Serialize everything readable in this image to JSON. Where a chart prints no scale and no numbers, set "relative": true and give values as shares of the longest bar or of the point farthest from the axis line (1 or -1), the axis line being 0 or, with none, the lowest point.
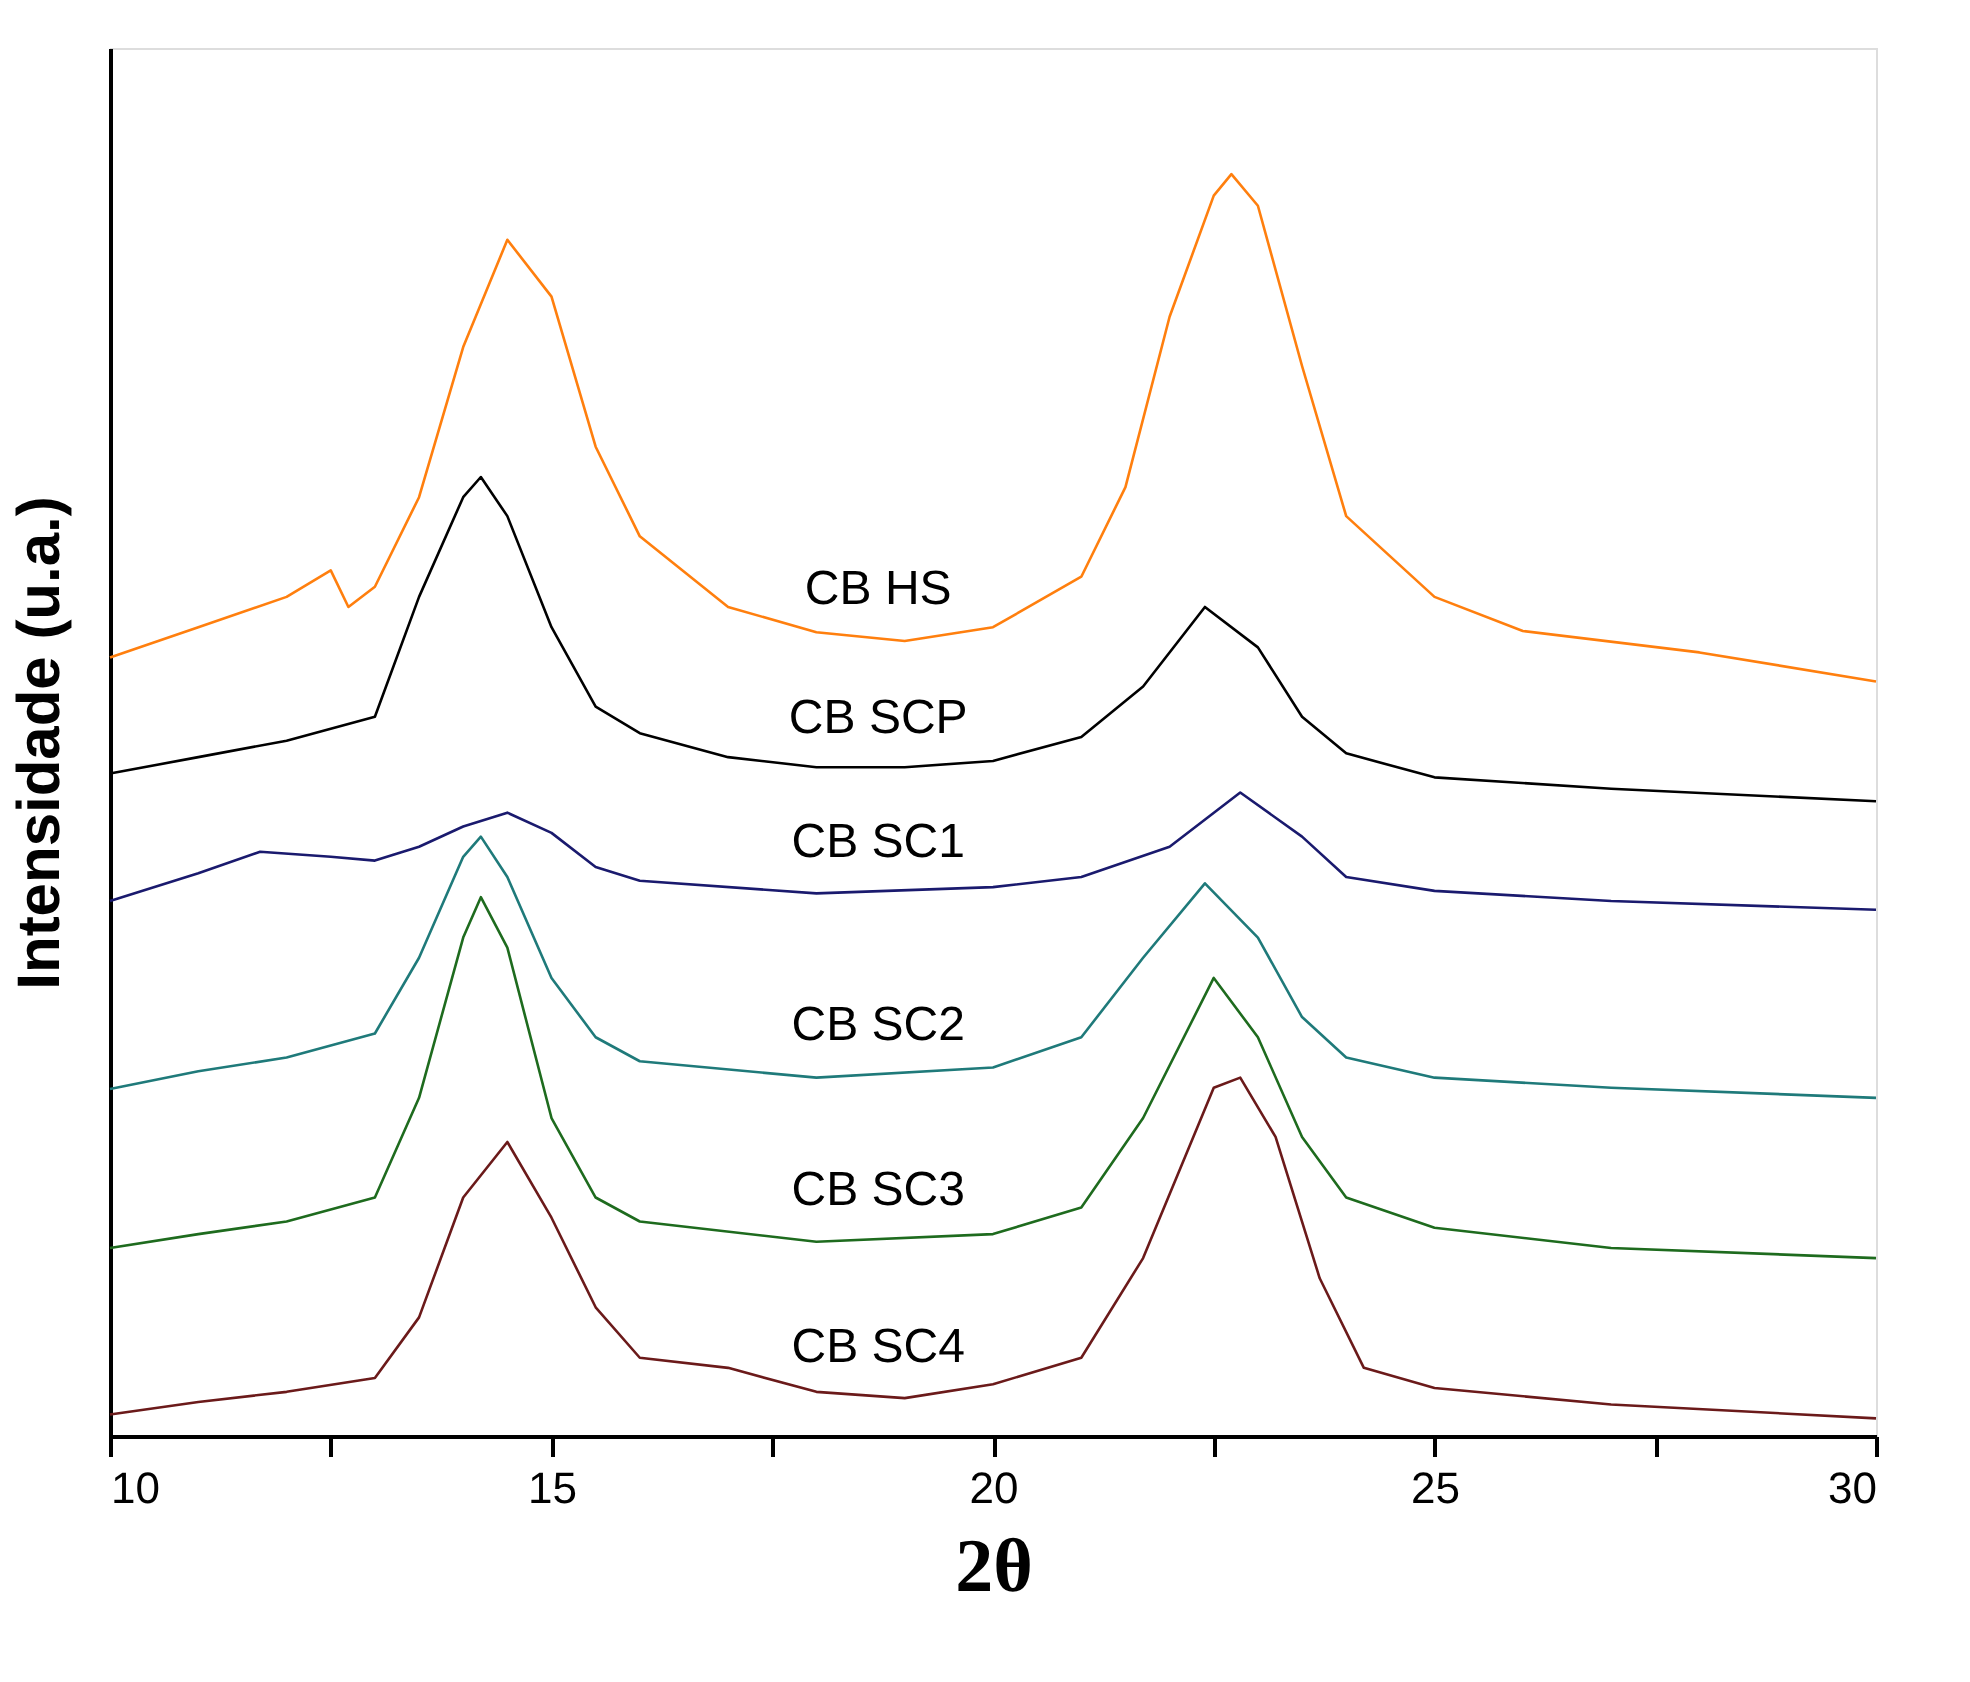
{
  "chart_data": {
    "type": "line",
    "relative": true,
    "xlabel": "2θ",
    "ylabel": "Intensidade (u.a.)",
    "xlim": [
      10,
      30
    ],
    "xticks": [
      10,
      {
        "value": 12.5,
        "label": null
      },
      15,
      {
        "value": 17.5,
        "label": null
      },
      20,
      {
        "value": 22.5,
        "label": null
      },
      25,
      {
        "value": 27.5,
        "label": null
      },
      30
    ],
    "grid": false,
    "marker": "none",
    "line_style": "solid",
    "series": [
      {
        "name": "CB HS",
        "color": "#ff7f0e",
        "x": [
          10,
          11,
          12,
          12.5,
          12.7,
          13,
          13.5,
          14,
          14.5,
          15,
          15.5,
          16,
          17,
          18,
          19,
          20,
          21,
          21.5,
          22,
          22.5,
          22.7,
          23,
          23.5,
          24,
          25,
          26,
          28,
          30
        ],
        "values": [
          0.617,
          0.641,
          0.665,
          0.686,
          0.657,
          0.673,
          0.744,
          0.863,
          0.948,
          0.903,
          0.784,
          0.713,
          0.657,
          0.637,
          0.63,
          0.641,
          0.681,
          0.752,
          0.887,
          0.983,
          1.0,
          0.975,
          0.848,
          0.729,
          0.665,
          0.638,
          0.621,
          0.598
        ]
      },
      {
        "name": "CB SCP",
        "color": "#000000",
        "x": [
          10,
          11,
          12,
          13,
          13.5,
          14,
          14.2,
          14.5,
          15,
          15.5,
          16,
          17,
          18,
          19,
          20,
          21,
          21.7,
          22.4,
          23,
          23.5,
          24,
          25,
          27,
          30
        ],
        "values": [
          0.525,
          0.538,
          0.551,
          0.57,
          0.665,
          0.744,
          0.76,
          0.729,
          0.641,
          0.578,
          0.557,
          0.538,
          0.53,
          0.53,
          0.535,
          0.554,
          0.594,
          0.657,
          0.625,
          0.57,
          0.541,
          0.522,
          0.513,
          0.503
        ]
      },
      {
        "name": "CB SC1",
        "color": "#1a1a6e",
        "x": [
          10,
          11,
          11.7,
          12.5,
          13,
          13.5,
          14,
          14.5,
          15,
          15.5,
          16,
          18,
          20,
          21,
          22,
          22.8,
          23.5,
          24,
          25,
          27,
          30
        ],
        "values": [
          0.424,
          0.446,
          0.463,
          0.459,
          0.456,
          0.467,
          0.483,
          0.494,
          0.478,
          0.451,
          0.44,
          0.43,
          0.435,
          0.443,
          0.467,
          0.51,
          0.475,
          0.443,
          0.432,
          0.424,
          0.417
        ]
      },
      {
        "name": "CB SC2",
        "color": "#1f7a7a",
        "x": [
          10,
          11,
          12,
          13,
          13.5,
          14,
          14.2,
          14.5,
          15,
          15.5,
          16,
          18,
          20,
          21,
          21.7,
          22.4,
          23,
          23.5,
          24,
          25,
          27,
          30
        ],
        "values": [
          0.275,
          0.289,
          0.3,
          0.319,
          0.379,
          0.459,
          0.475,
          0.443,
          0.363,
          0.316,
          0.297,
          0.284,
          0.292,
          0.316,
          0.379,
          0.438,
          0.395,
          0.332,
          0.3,
          0.284,
          0.276,
          0.268
        ]
      },
      {
        "name": "CB SC3",
        "color": "#1e6b1e",
        "x": [
          10,
          11,
          12,
          13,
          13.5,
          14,
          14.2,
          14.5,
          15,
          15.5,
          16,
          18,
          20,
          21,
          21.7,
          22.5,
          23,
          23.5,
          24,
          25,
          27,
          30
        ],
        "values": [
          0.149,
          0.16,
          0.17,
          0.189,
          0.268,
          0.395,
          0.427,
          0.387,
          0.252,
          0.189,
          0.17,
          0.154,
          0.16,
          0.181,
          0.252,
          0.363,
          0.316,
          0.237,
          0.189,
          0.165,
          0.149,
          0.141
        ]
      },
      {
        "name": "CB SC4",
        "color": "#6b1a1a",
        "x": [
          10,
          11,
          12,
          13,
          13.5,
          14,
          14.5,
          15,
          15.5,
          16,
          17,
          18,
          19,
          20,
          21,
          21.7,
          22.5,
          22.8,
          23.2,
          23.7,
          24.2,
          25,
          27,
          30
        ],
        "values": [
          0.017,
          0.027,
          0.035,
          0.046,
          0.094,
          0.189,
          0.233,
          0.173,
          0.102,
          0.062,
          0.054,
          0.035,
          0.03,
          0.041,
          0.062,
          0.141,
          0.276,
          0.284,
          0.237,
          0.125,
          0.054,
          0.038,
          0.025,
          0.014
        ]
      }
    ]
  }
}
